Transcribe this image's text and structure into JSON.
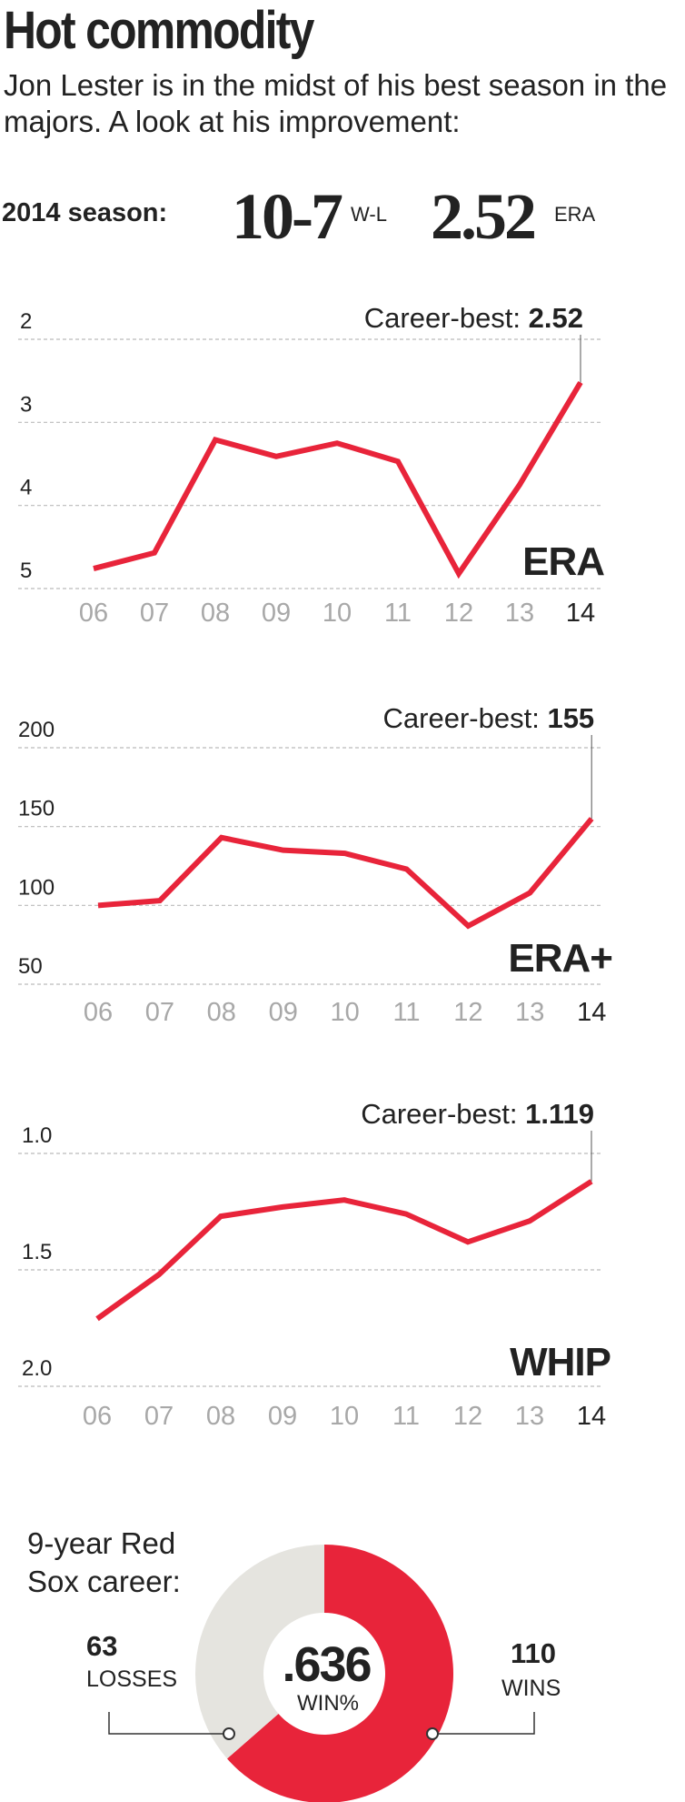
{
  "header": {
    "title": "Hot commodity",
    "subtitle": "Jon Lester is in the midst of his best season in the majors. A look at his improvement:"
  },
  "season": {
    "label": "2014 season:",
    "record": "10-7",
    "record_unit": "W-L",
    "era": "2.52",
    "era_unit": "ERA"
  },
  "colors": {
    "line": "#e8243a",
    "wins": "#e8243a",
    "losses": "#e5e4df",
    "grid": "#bbbbbb",
    "tick_gray": "#a8a8a8",
    "text": "#222222"
  },
  "chart_data": [
    {
      "type": "line",
      "label": "ERA",
      "inverted": true,
      "categories": [
        "06",
        "07",
        "08",
        "09",
        "10",
        "11",
        "12",
        "13",
        "14"
      ],
      "values": [
        4.76,
        4.57,
        3.21,
        3.41,
        3.25,
        3.47,
        4.82,
        3.75,
        2.52
      ],
      "ylim": [
        2,
        5
      ],
      "yticks": [
        "2",
        "3",
        "4",
        "5"
      ],
      "annotation": {
        "prefix": "Career-best: ",
        "value": "2.52"
      }
    },
    {
      "type": "line",
      "label": "ERA+",
      "inverted": false,
      "categories": [
        "06",
        "07",
        "08",
        "09",
        "10",
        "11",
        "12",
        "13",
        "14"
      ],
      "values": [
        100,
        103,
        143,
        135,
        133,
        123,
        87,
        108,
        155
      ],
      "ylim": [
        50,
        200
      ],
      "yticks": [
        "200",
        "150",
        "100",
        "50"
      ],
      "annotation": {
        "prefix": "Career-best: ",
        "value": "155"
      }
    },
    {
      "type": "line",
      "label": "WHIP",
      "inverted": true,
      "categories": [
        "06",
        "07",
        "08",
        "09",
        "10",
        "11",
        "12",
        "13",
        "14"
      ],
      "values": [
        1.71,
        1.52,
        1.27,
        1.23,
        1.2,
        1.26,
        1.38,
        1.29,
        1.12
      ],
      "ylim": [
        1.0,
        2.0
      ],
      "yticks": [
        "1.0",
        "1.5",
        "2.0"
      ],
      "annotation": {
        "prefix": "Career-best: ",
        "value": "1.119"
      }
    },
    {
      "type": "pie",
      "title": "9-year Red Sox career:",
      "slices": [
        {
          "name": "LOSSES",
          "value": 63
        },
        {
          "name": "WINS",
          "value": 110
        }
      ],
      "center_value": ".636",
      "center_label": "WIN%"
    }
  ]
}
